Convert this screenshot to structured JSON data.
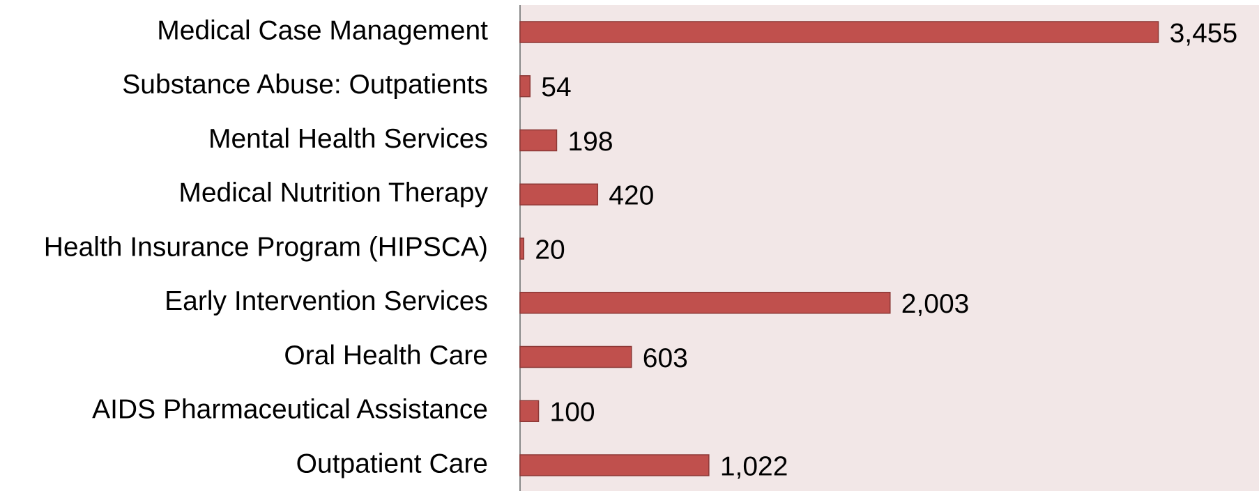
{
  "chart_data": {
    "type": "hbar",
    "categories": [
      "Medical Case Management",
      "Substance Abuse: Outpatients",
      "Mental Health Services",
      "Medical Nutrition Therapy",
      "Health Insurance Program (HIPSCA)",
      "Early Intervention Services",
      "Oral Health Care",
      "AIDS Pharmaceutical Assistance",
      "Outpatient Care"
    ],
    "values": [
      3455,
      54,
      198,
      420,
      20,
      2003,
      603,
      100,
      1022
    ],
    "value_labels": [
      "3,455",
      "54",
      "198",
      "420",
      "20",
      "2,003",
      "603",
      "100",
      "1,022"
    ],
    "color": "#c0504d",
    "xlim": [
      0,
      4000
    ]
  }
}
